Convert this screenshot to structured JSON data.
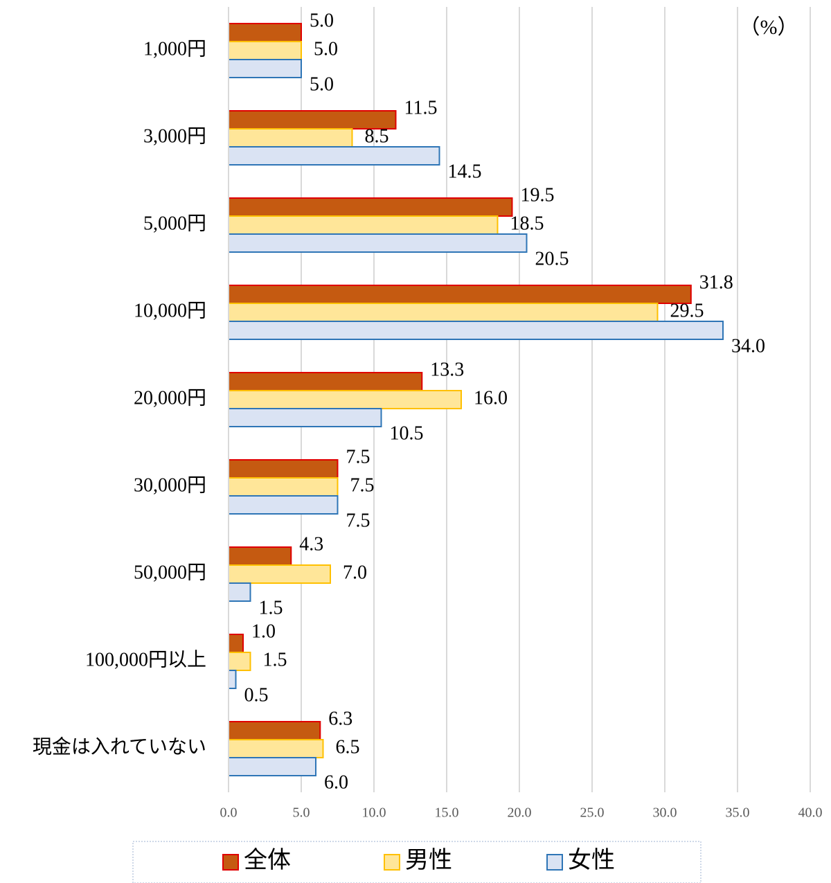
{
  "chart_data": {
    "type": "barh",
    "annotation": "（%）",
    "categories": [
      "1,000円",
      "3,000円",
      "5,000円",
      "10,000円",
      "20,000円",
      "30,000円",
      "50,000円",
      "100,000円以上",
      "現金は入れていない"
    ],
    "series": [
      {
        "name": "全体",
        "color": "#c55a11",
        "edgecolor": "#e00000",
        "values": [
          5.0,
          11.5,
          19.5,
          31.8,
          13.3,
          7.5,
          4.3,
          1.0,
          6.3
        ],
        "value_labels": [
          "5.0",
          "11.5",
          "19.5",
          "31.8",
          "13.3",
          "7.5",
          "4.3",
          "1.0",
          "6.3"
        ]
      },
      {
        "name": "男性",
        "color": "#ffe699",
        "edgecolor": "#ffc000",
        "values": [
          5.0,
          8.5,
          18.5,
          29.5,
          16.0,
          7.5,
          7.0,
          1.5,
          6.5
        ],
        "value_labels": [
          "5.0",
          "8.5",
          "18.5",
          "29.5",
          "16.0",
          "7.5",
          "7.0",
          "1.5",
          "6.5"
        ]
      },
      {
        "name": "女性",
        "color": "#dae3f3",
        "edgecolor": "#2e75b6",
        "values": [
          5.0,
          14.5,
          20.5,
          34.0,
          10.5,
          7.5,
          1.5,
          0.5,
          6.0
        ],
        "value_labels": [
          "5.0",
          "14.5",
          "20.5",
          "34.0",
          "10.5",
          "7.5",
          "1.5",
          "0.5",
          "6.0"
        ]
      }
    ],
    "xlim": [
      0,
      40
    ],
    "xticks": [
      {
        "value": 0,
        "label": "0.0"
      },
      {
        "value": 5,
        "label": "5.0"
      },
      {
        "value": 10,
        "label": "10.0"
      },
      {
        "value": 15,
        "label": "15.0"
      },
      {
        "value": 20,
        "label": "20.0"
      },
      {
        "value": 25,
        "label": "25.0"
      },
      {
        "value": 30,
        "label": "30.0"
      },
      {
        "value": 35,
        "label": "35.0"
      },
      {
        "value": 40,
        "label": "40.0"
      }
    ],
    "grid": true,
    "legend": "bottom"
  }
}
